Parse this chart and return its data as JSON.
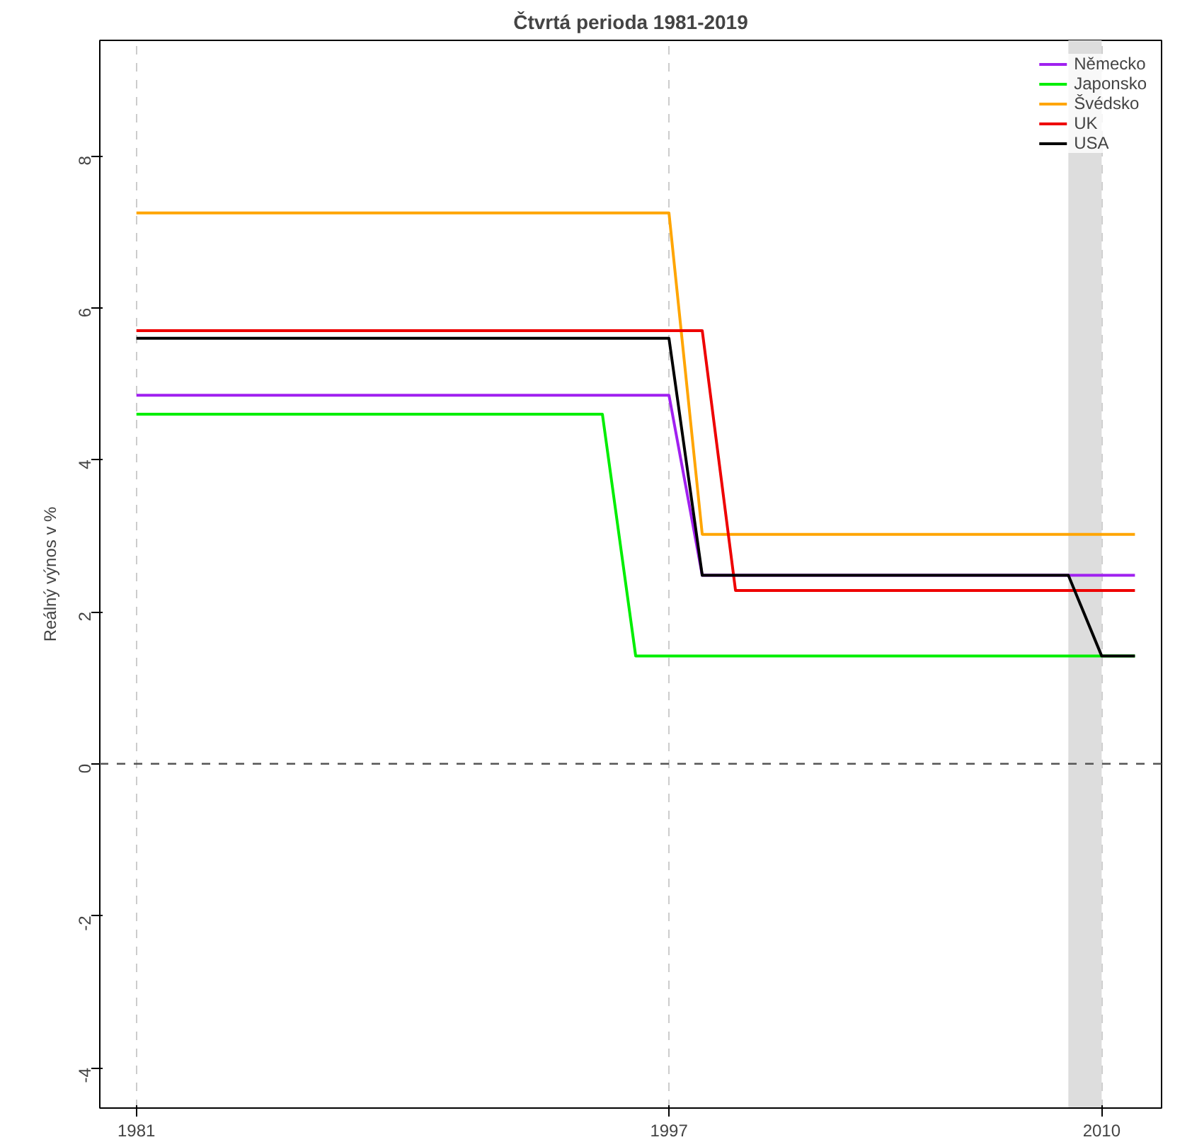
{
  "chart_data": {
    "type": "line",
    "title": "Čtvrtá perioda 1981-2019",
    "ylabel": "Reálný výnos v %",
    "xlim": [
      1979.9,
      2011.8
    ],
    "xticks": [
      1981,
      1997,
      2010
    ],
    "ylim": [
      -4.53,
      9.52
    ],
    "yticks": [
      -4,
      -2,
      0,
      2,
      4,
      6,
      8
    ],
    "grid": "x",
    "legend": "top right",
    "line_style": "solid",
    "ref_lines": [
      {
        "axis": "y",
        "value": 0,
        "color": "#555555",
        "line_style": "dashed"
      }
    ],
    "bands": [
      {
        "axis": "x",
        "from": 2009,
        "to": 2010,
        "color": "#dddddd"
      }
    ],
    "series": [
      {
        "name": "Německo",
        "color": "#a020f0",
        "x": [
          1981,
          1997,
          1998,
          2011
        ],
        "values": [
          4.85,
          4.85,
          2.48,
          2.48
        ]
      },
      {
        "name": "Japonsko",
        "color": "#00ee00",
        "x": [
          1981,
          1995,
          1996,
          2011
        ],
        "values": [
          4.6,
          4.6,
          1.42,
          1.42
        ]
      },
      {
        "name": "Švédsko",
        "color": "#ffa500",
        "x": [
          1981,
          1997,
          1998,
          2011
        ],
        "values": [
          7.25,
          7.25,
          3.02,
          3.02
        ]
      },
      {
        "name": "UK",
        "color": "#ee0000",
        "x": [
          1981,
          1998,
          1999,
          2011
        ],
        "values": [
          5.7,
          5.7,
          2.28,
          2.28
        ]
      },
      {
        "name": "USA",
        "color": "#000000",
        "x": [
          1981,
          1997,
          1998,
          2009,
          2010,
          2011
        ],
        "values": [
          5.6,
          5.6,
          2.48,
          2.48,
          1.42,
          1.42
        ]
      }
    ]
  }
}
